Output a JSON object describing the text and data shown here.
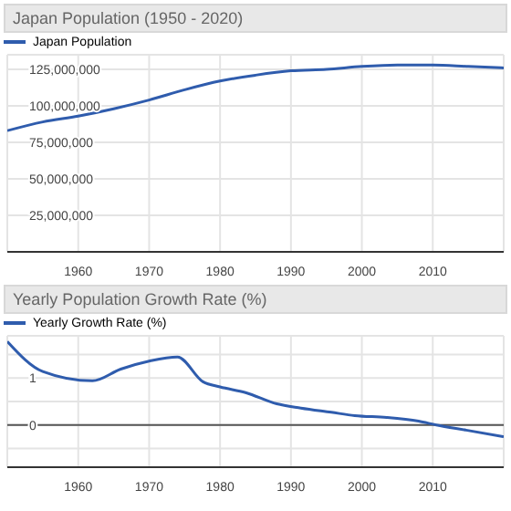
{
  "chart_data": [
    {
      "type": "line",
      "title": "Japan Population (1950 - 2020)",
      "x": [
        1950,
        1955,
        1960,
        1965,
        1970,
        1975,
        1980,
        1985,
        1990,
        1995,
        2000,
        2005,
        2010,
        2015,
        2020
      ],
      "series": [
        {
          "name": "Japan Population",
          "color": "#2f5cad",
          "values": [
            83000000,
            89000000,
            93000000,
            98000000,
            104000000,
            111000000,
            117000000,
            121000000,
            124000000,
            125000000,
            127000000,
            128000000,
            128000000,
            127000000,
            126000000
          ]
        }
      ],
      "xlim": [
        1950,
        2020
      ],
      "xticks": [
        1960,
        1970,
        1980,
        1990,
        2000,
        2010
      ],
      "ylim": [
        0,
        135000000
      ],
      "yticks": [
        {
          "value": 25000000,
          "label": "25,000,000"
        },
        {
          "value": 50000000,
          "label": "50,000,000"
        },
        {
          "value": 75000000,
          "label": "75,000,000"
        },
        {
          "value": 100000000,
          "label": "100,000,000"
        },
        {
          "value": 125000000,
          "label": "125,000,000"
        }
      ],
      "grid": true,
      "legend": "top left"
    },
    {
      "type": "line",
      "title": "Yearly Population Growth Rate (%)",
      "x": [
        1950,
        1955,
        1962,
        1966,
        1970,
        1974,
        1977.6,
        1980,
        1983.6,
        1988,
        1991.4,
        1995.7,
        1999,
        2003.5,
        2008,
        2010.5,
        2014.7,
        2020
      ],
      "series": [
        {
          "name": "Yearly Growth Rate (%)",
          "color": "#2f5cad",
          "values": [
            1.78,
            1.14,
            0.94,
            1.19,
            1.36,
            1.45,
            0.92,
            0.81,
            0.69,
            0.45,
            0.36,
            0.27,
            0.2,
            0.16,
            0.08,
            0,
            -0.11,
            -0.25
          ]
        }
      ],
      "xlim": [
        1950,
        2020
      ],
      "xticks": [
        1960,
        1970,
        1980,
        1990,
        2000,
        2010
      ],
      "ylim": [
        -0.9,
        1.9
      ],
      "yticks": [
        {
          "value": -0.5,
          "label": null
        },
        0,
        {
          "value": 0.5,
          "label": null
        },
        1,
        {
          "value": 1.5,
          "label": null
        }
      ],
      "ref_lines": [
        {
          "axis": "y",
          "value": 0,
          "color": "#555555"
        }
      ],
      "grid": true,
      "legend": "top left"
    }
  ]
}
